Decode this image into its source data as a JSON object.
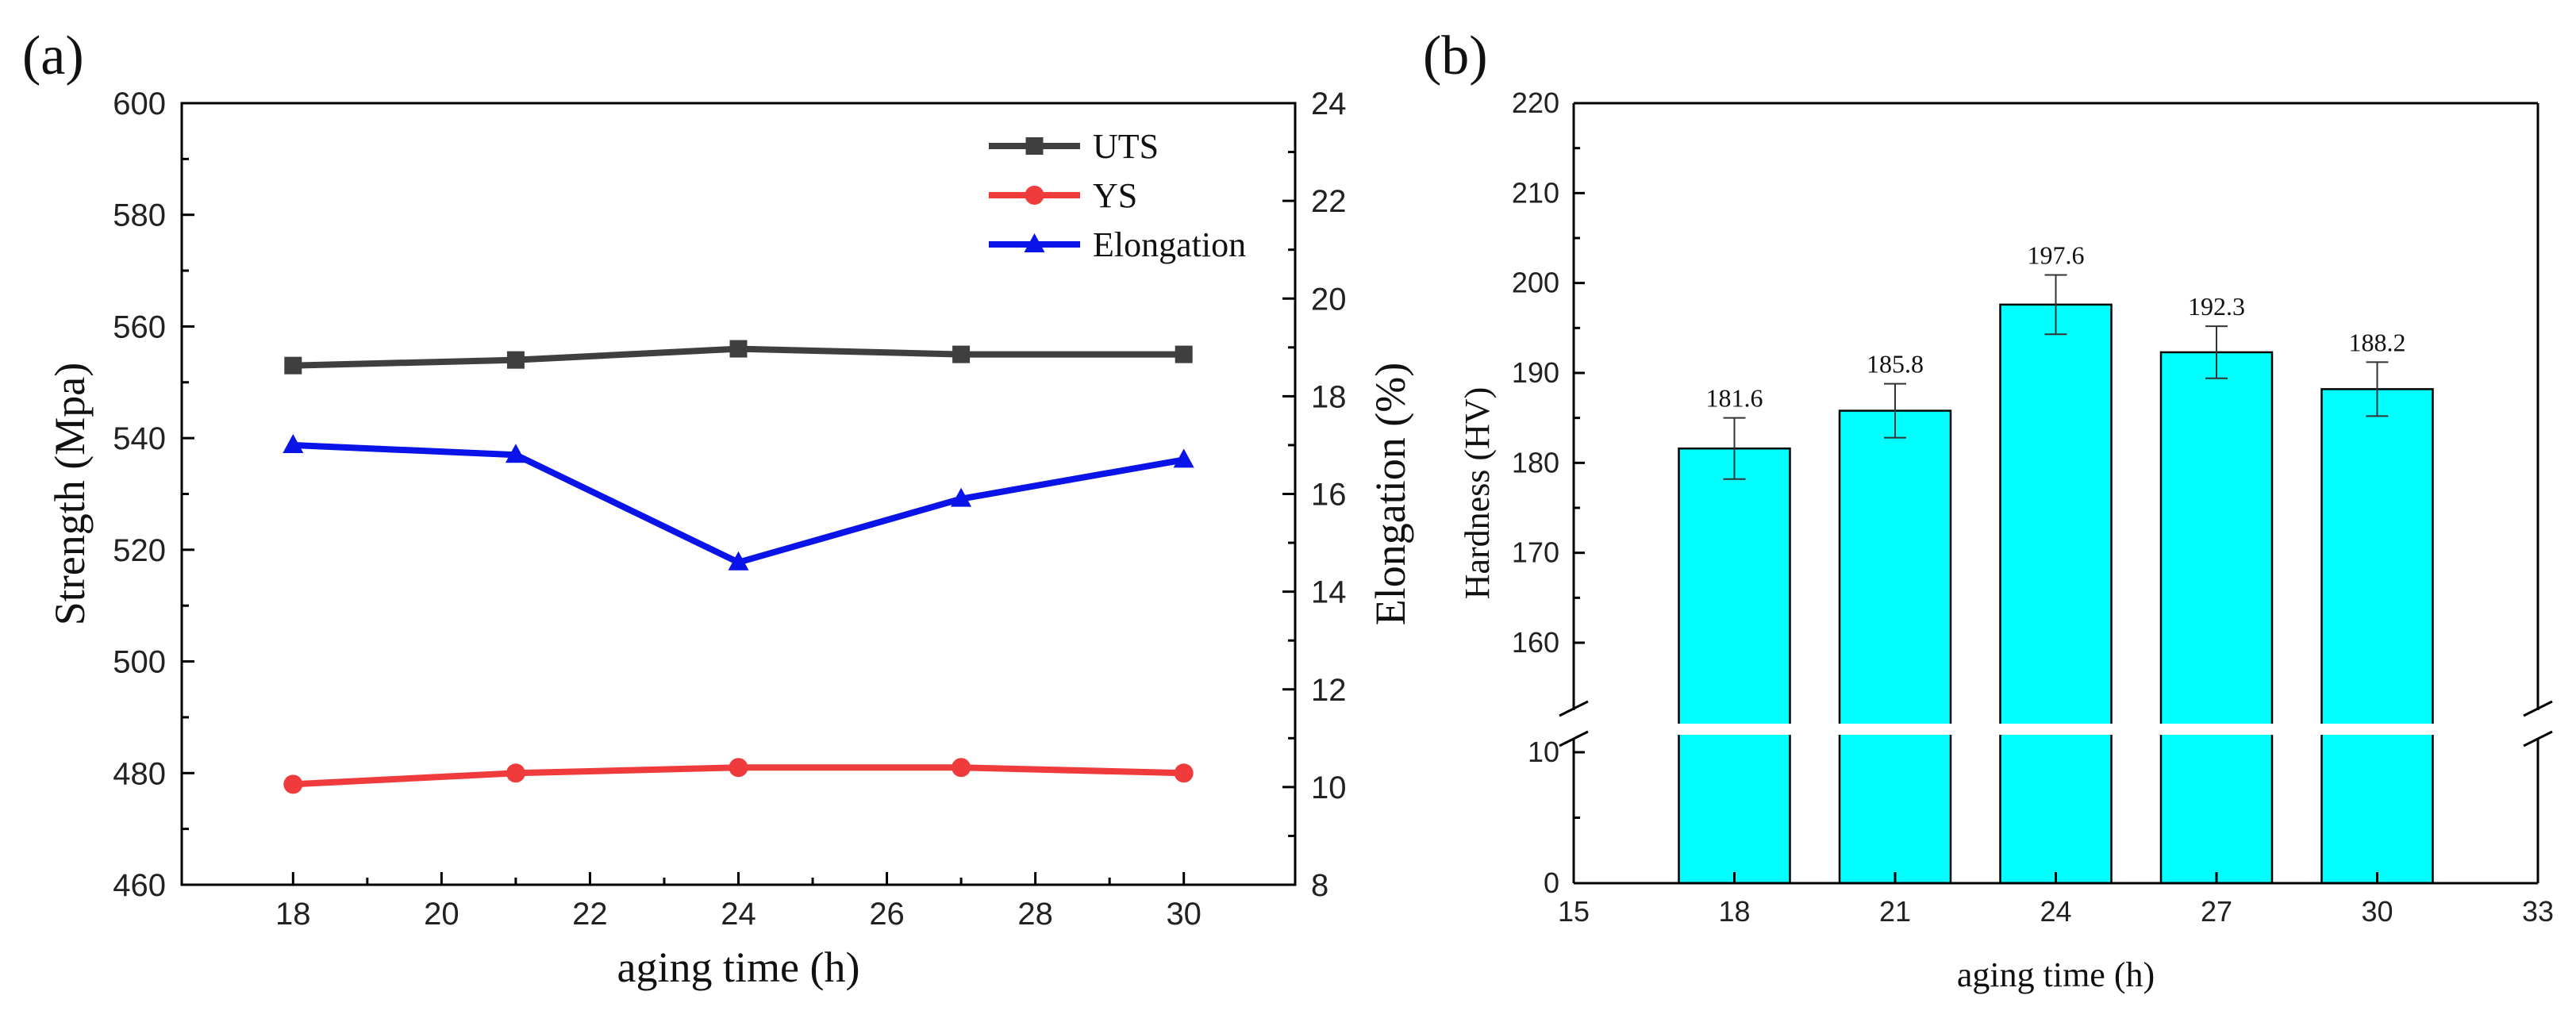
{
  "chart_data": [
    {
      "panel_label": "(a)",
      "type": "line",
      "x": [
        18,
        21,
        24,
        27,
        30
      ],
      "xlabel": "aging time (h)",
      "xlim": [
        16.5,
        31.5
      ],
      "xticks": [
        18,
        20,
        22,
        24,
        26,
        28,
        30
      ],
      "ylabel": "Strength (Mpa)",
      "ylim": [
        460,
        600
      ],
      "yticks": [
        460,
        480,
        500,
        520,
        540,
        560,
        580,
        600
      ],
      "y2label": "Elongation (%)",
      "y2lim": [
        8,
        24
      ],
      "y2ticks": [
        8,
        10,
        12,
        14,
        16,
        18,
        20,
        22,
        24
      ],
      "legend_position": "top-right",
      "series": [
        {
          "name": "UTS",
          "axis": "left",
          "marker": "square",
          "color": "#3f3f3f",
          "values": [
            553,
            554,
            556,
            555,
            555
          ]
        },
        {
          "name": "YS",
          "axis": "left",
          "marker": "circle",
          "color": "#ef3b3b",
          "values": [
            478,
            480,
            481,
            481,
            480
          ]
        },
        {
          "name": "Elongation",
          "axis": "right",
          "marker": "triangle",
          "color": "#0a14e8",
          "values": [
            17.0,
            16.8,
            14.6,
            15.9,
            16.7
          ]
        }
      ]
    },
    {
      "panel_label": "(b)",
      "type": "bar",
      "categories": [
        18,
        21,
        24,
        27,
        30
      ],
      "values": [
        181.6,
        185.8,
        197.6,
        192.3,
        188.2
      ],
      "value_labels": [
        "181.6",
        "185.8",
        "197.6",
        "192.3",
        "188.2"
      ],
      "errors": [
        3.4,
        3.0,
        3.3,
        2.9,
        3.0
      ],
      "bar_color": "#00ffff",
      "xlabel": "aging time (h)",
      "xlim": [
        15,
        33
      ],
      "xticks": [
        15,
        18,
        21,
        24,
        27,
        30,
        33
      ],
      "ylabel": "Hardness (HV)",
      "broken_axis": true,
      "ylim_lower": [
        0,
        10
      ],
      "yticks_lower": [
        0,
        10
      ],
      "ylim_upper": [
        151,
        220
      ],
      "yticks_upper": [
        160,
        170,
        180,
        190,
        200,
        210,
        220
      ]
    }
  ]
}
